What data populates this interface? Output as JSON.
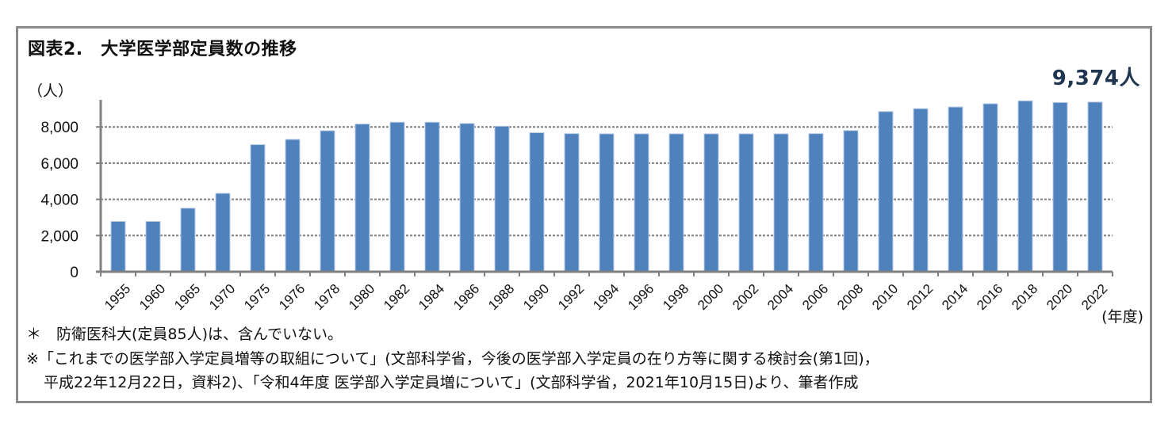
{
  "figure": {
    "title": "図表2.　大学医学部定員数の推移",
    "unit_label": "（人）",
    "annotation": "9,374人",
    "x_unit_label": "(年度)",
    "notes": [
      "＊　防衛医科大(定員85人)は、含んでいない。",
      "※「これまでの医学部入学定員増等の取組について」(文部科学省，今後の医学部入学定員の在り方等に関する検討会(第1回)，",
      "平成22年12月22日，資料2)、「令和4年度 医学部入学定員増について」(文部科学省，2021年10月15日)より、筆者作成"
    ],
    "colors": {
      "bar": "#4f81bd",
      "bar_edge": "#b9cde5",
      "grid": "#7f7f7f",
      "axis": "#808080",
      "annotation": "#1f3550",
      "frame": "#8a8a8a"
    }
  },
  "chart_data": {
    "type": "bar",
    "title": "図表2.　大学医学部定員数の推移",
    "xlabel": "(年度)",
    "ylabel": "（人）",
    "ylim": [
      0,
      9000
    ],
    "yticks": [
      0,
      2000,
      4000,
      6000,
      8000
    ],
    "ytick_labels": [
      "0",
      "2,000",
      "4,000",
      "6,000",
      "8,000"
    ],
    "grid": true,
    "legend": null,
    "annotations": [
      "9,374人"
    ],
    "categories": [
      "1955",
      "1960",
      "1965",
      "1970",
      "1975",
      "1976",
      "1978",
      "1980",
      "1982",
      "1984",
      "1986",
      "1988",
      "1990",
      "1992",
      "1994",
      "1996",
      "1998",
      "2000",
      "2002",
      "2004",
      "2006",
      "2008",
      "2010",
      "2012",
      "2014",
      "2016",
      "2018",
      "2020",
      "2022"
    ],
    "series": [
      {
        "name": "医学部定員数",
        "values": [
          2780,
          2780,
          3510,
          4330,
          7020,
          7310,
          7790,
          8160,
          8260,
          8260,
          8190,
          8040,
          7680,
          7630,
          7620,
          7620,
          7620,
          7620,
          7620,
          7620,
          7630,
          7800,
          8850,
          9010,
          9100,
          9280,
          9440,
          9350,
          9374
        ]
      }
    ]
  }
}
